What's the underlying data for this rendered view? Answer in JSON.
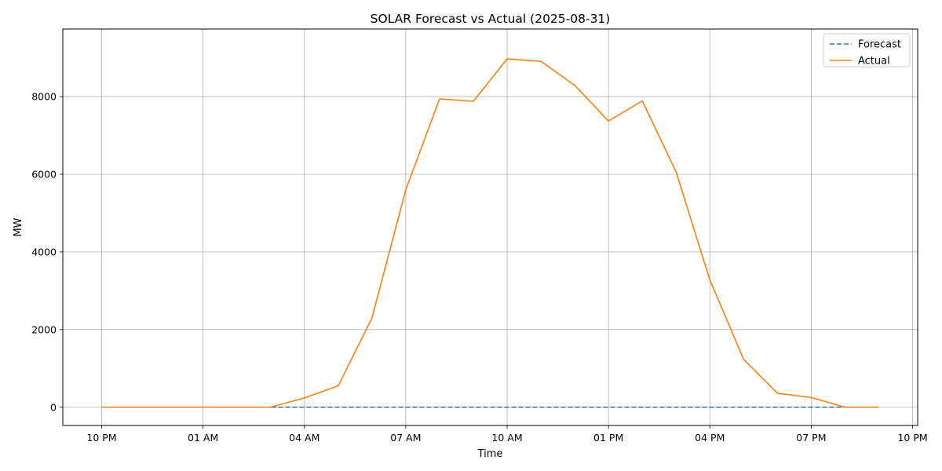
{
  "chart_data": {
    "type": "line",
    "title": "SOLAR Forecast vs Actual (2025-08-31)",
    "xlabel": "Time",
    "ylabel": "MW",
    "x_hours": [
      0,
      1,
      2,
      3,
      4,
      5,
      6,
      7,
      8,
      9,
      10,
      11,
      12,
      13,
      14,
      15,
      16,
      17,
      18,
      19,
      20,
      21,
      22,
      23
    ],
    "x_tick_labels": [
      "10 PM",
      "01 AM",
      "04 AM",
      "07 AM",
      "10 AM",
      "01 PM",
      "04 PM",
      "07 PM",
      "10 PM"
    ],
    "x_tick_hours": [
      0,
      3,
      6,
      9,
      12,
      15,
      18,
      21,
      24
    ],
    "y_ticks": [
      0,
      2000,
      4000,
      6000,
      8000
    ],
    "xlim": [
      -1.15,
      24.15
    ],
    "ylim": [
      -470,
      9740
    ],
    "grid": true,
    "legend_position": "top-right",
    "series": [
      {
        "name": "Forecast",
        "color": "#1f77b4",
        "style": "dashed",
        "values": [
          0,
          0,
          0,
          0,
          0,
          0,
          0,
          0,
          0,
          0,
          0,
          0,
          0,
          0,
          0,
          0,
          0,
          0,
          0,
          0,
          0,
          0,
          0,
          0
        ]
      },
      {
        "name": "Actual",
        "color": "#ff7f0e",
        "style": "solid",
        "values": [
          0,
          0,
          0,
          0,
          0,
          0,
          240,
          550,
          2300,
          5600,
          7940,
          7880,
          8970,
          8910,
          8290,
          7370,
          7890,
          6060,
          3280,
          1230,
          360,
          250,
          0,
          0
        ]
      }
    ]
  }
}
